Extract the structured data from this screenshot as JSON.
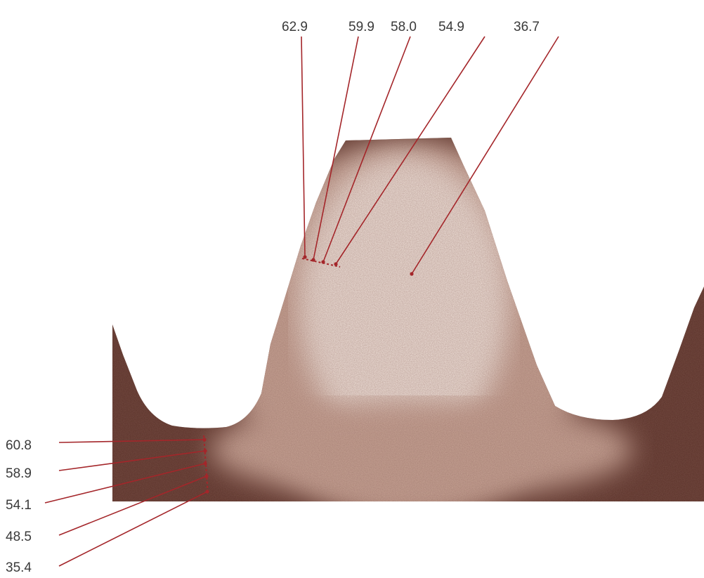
{
  "diagram": {
    "colors": {
      "section_light": "#f4e7df",
      "section_mid": "#c9a596",
      "section_dark": "#5a3128",
      "leader": "#a4262a",
      "label_text": "#3a3a3a"
    },
    "top_labels": [
      {
        "text": "62.9"
      },
      {
        "text": "59.9"
      },
      {
        "text": "58.0"
      },
      {
        "text": "54.9"
      },
      {
        "text": "36.7"
      }
    ],
    "left_labels": [
      {
        "text": "60.8"
      },
      {
        "text": "58.9"
      },
      {
        "text": "54.1"
      },
      {
        "text": "48.5"
      },
      {
        "text": "35.4"
      }
    ]
  }
}
